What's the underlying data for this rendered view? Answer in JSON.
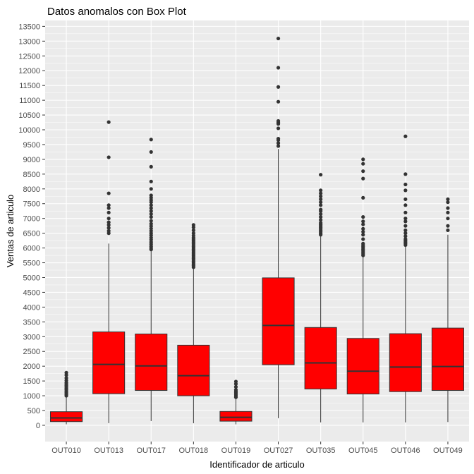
{
  "chart_data": {
    "type": "boxplot",
    "title": "Datos anomalos con Box Plot",
    "xlabel": "Identificador de articulo",
    "ylabel": "Ventas de articulo",
    "ylim": [
      -550,
      13700
    ],
    "yticks": [
      0,
      500,
      1000,
      1500,
      2000,
      2500,
      3000,
      3500,
      4000,
      4500,
      5000,
      5500,
      6000,
      6500,
      7000,
      7500,
      8000,
      8500,
      9000,
      9500,
      10000,
      10500,
      11000,
      11500,
      12000,
      12500,
      13000,
      13500
    ],
    "categories": [
      "OUT010",
      "OUT013",
      "OUT017",
      "OUT018",
      "OUT019",
      "OUT027",
      "OUT035",
      "OUT045",
      "OUT046",
      "OUT049"
    ],
    "colors": {
      "box_fill": "#ff0000",
      "box_line": "#333333",
      "panel": "#ebebeb",
      "grid": "#ffffff",
      "outlier": "#333333"
    },
    "boxes": [
      {
        "name": "OUT010",
        "min": 34,
        "q1": 125,
        "median": 250,
        "q3": 460,
        "max": 960,
        "outliers": [
          1000,
          1050,
          1100,
          1150,
          1200,
          1250,
          1300,
          1350,
          1400,
          1450,
          1520,
          1600,
          1700,
          1780
        ]
      },
      {
        "name": "OUT013",
        "min": 73,
        "q1": 1070,
        "median": 2060,
        "q3": 3160,
        "max": 6150,
        "outliers": [
          6500,
          6580,
          6680,
          6780,
          6870,
          7000,
          7200,
          7350,
          7450,
          7850,
          9070,
          10260
        ]
      },
      {
        "name": "OUT017",
        "min": 144,
        "q1": 1180,
        "median": 2010,
        "q3": 3090,
        "max": 5900,
        "outliers": [
          5950,
          6000,
          6060,
          6130,
          6200,
          6280,
          6350,
          6430,
          6500,
          6580,
          6660,
          6740,
          6820,
          6920,
          7050,
          7150,
          7250,
          7350,
          7450,
          7550,
          7620,
          7700,
          7780,
          8000,
          8250,
          8750,
          9250,
          9670
        ]
      },
      {
        "name": "OUT018",
        "min": 69,
        "q1": 1000,
        "median": 1680,
        "q3": 2710,
        "max": 5300,
        "outliers": [
          5350,
          5400,
          5450,
          5500,
          5550,
          5600,
          5650,
          5700,
          5750,
          5800,
          5850,
          5900,
          5950,
          6000,
          6050,
          6100,
          6150,
          6200,
          6250,
          6300,
          6350,
          6420,
          6500,
          6600,
          6700,
          6780
        ]
      },
      {
        "name": "OUT019",
        "min": 33,
        "q1": 140,
        "median": 270,
        "q3": 470,
        "max": 900,
        "outliers": [
          950,
          1000,
          1050,
          1100,
          1150,
          1200,
          1300,
          1400,
          1480
        ]
      },
      {
        "name": "OUT027",
        "min": 241,
        "q1": 2050,
        "median": 3380,
        "q3": 4990,
        "max": 9350,
        "outliers": [
          9450,
          9550,
          9650,
          9700,
          10050,
          10200,
          10250,
          10300,
          10950,
          11450,
          12100,
          13090
        ]
      },
      {
        "name": "OUT035",
        "min": 99,
        "q1": 1230,
        "median": 2110,
        "q3": 3310,
        "max": 6400,
        "outliers": [
          6450,
          6500,
          6550,
          6600,
          6650,
          6700,
          6750,
          6800,
          6850,
          6950,
          7050,
          7150,
          7250,
          7300,
          7450,
          7550,
          7650,
          7750,
          7850,
          7950,
          8480
        ]
      },
      {
        "name": "OUT045",
        "min": 99,
        "q1": 1060,
        "median": 1830,
        "q3": 2940,
        "max": 5700,
        "outliers": [
          5750,
          5800,
          5850,
          5900,
          5950,
          6000,
          6050,
          6100,
          6150,
          6300,
          6450,
          6550,
          6650,
          6800,
          6900,
          7050,
          7700,
          8350,
          8600,
          8850,
          9000
        ]
      },
      {
        "name": "OUT046",
        "min": 99,
        "q1": 1140,
        "median": 1970,
        "q3": 3100,
        "max": 6050,
        "outliers": [
          6100,
          6150,
          6200,
          6250,
          6300,
          6400,
          6500,
          6600,
          6750,
          6900,
          7000,
          7200,
          7450,
          7650,
          7950,
          8150,
          8500,
          9780
        ]
      },
      {
        "name": "OUT049",
        "min": 111,
        "q1": 1180,
        "median": 1990,
        "q3": 3290,
        "max": 6450,
        "outliers": [
          6600,
          6750,
          7000,
          7200,
          7350,
          7550,
          7650
        ]
      }
    ]
  }
}
